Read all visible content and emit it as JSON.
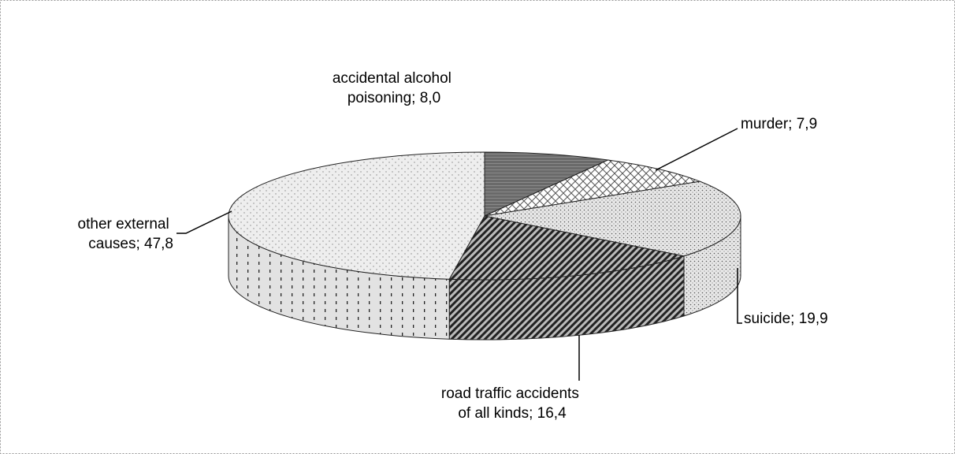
{
  "chart_data": {
    "type": "pie3d",
    "values": [
      8.0,
      7.9,
      19.9,
      16.4,
      47.8
    ],
    "value_labels": [
      "accidental alcohol poisoning; 8,0",
      "murder; 7,9",
      "suicide; 19,9",
      "road traffic accidents of all kinds; 16,4",
      "other external causes; 47,8"
    ],
    "colors": [
      "#6e6e6e",
      "#ffffff",
      "#e6e6e6",
      "#4a4a4a",
      "#ececec"
    ]
  }
}
